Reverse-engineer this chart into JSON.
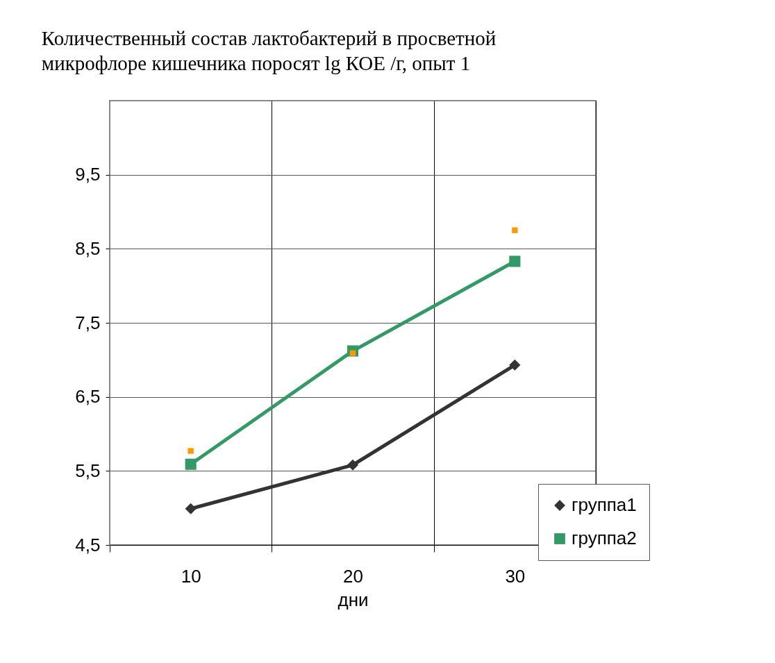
{
  "chart_data": {
    "type": "line",
    "title": "Количественный состав  лактобактерий в просветной\n микрофлоре кишечника поросят lg КОЕ /г, опыт 1",
    "xlabel": "дни",
    "categories": [
      "10",
      "20",
      "30"
    ],
    "series": [
      {
        "name": "группа1",
        "color": "#333333",
        "marker": "diamond",
        "values": [
          4.99,
          5.58,
          6.93
        ]
      },
      {
        "name": "группа2",
        "color": "#339966",
        "marker": "square",
        "values": [
          5.59,
          7.12,
          8.33
        ]
      },
      {
        "type": "scatter",
        "color": "#ff9900",
        "marker": "square",
        "values": [
          5.77,
          7.09,
          8.75
        ]
      }
    ],
    "ylim": [
      4.5,
      10.5
    ],
    "yticks": [
      {
        "value": 4.5,
        "label": "4,5"
      },
      {
        "value": 5.5,
        "label": "5,5"
      },
      {
        "value": 6.5,
        "label": "6,5"
      },
      {
        "value": 7.5,
        "label": "7,5"
      },
      {
        "value": 8.5,
        "label": "8,5"
      },
      {
        "value": 9.5,
        "label": "9,5"
      }
    ],
    "grid": true,
    "legend": "bottom right"
  }
}
